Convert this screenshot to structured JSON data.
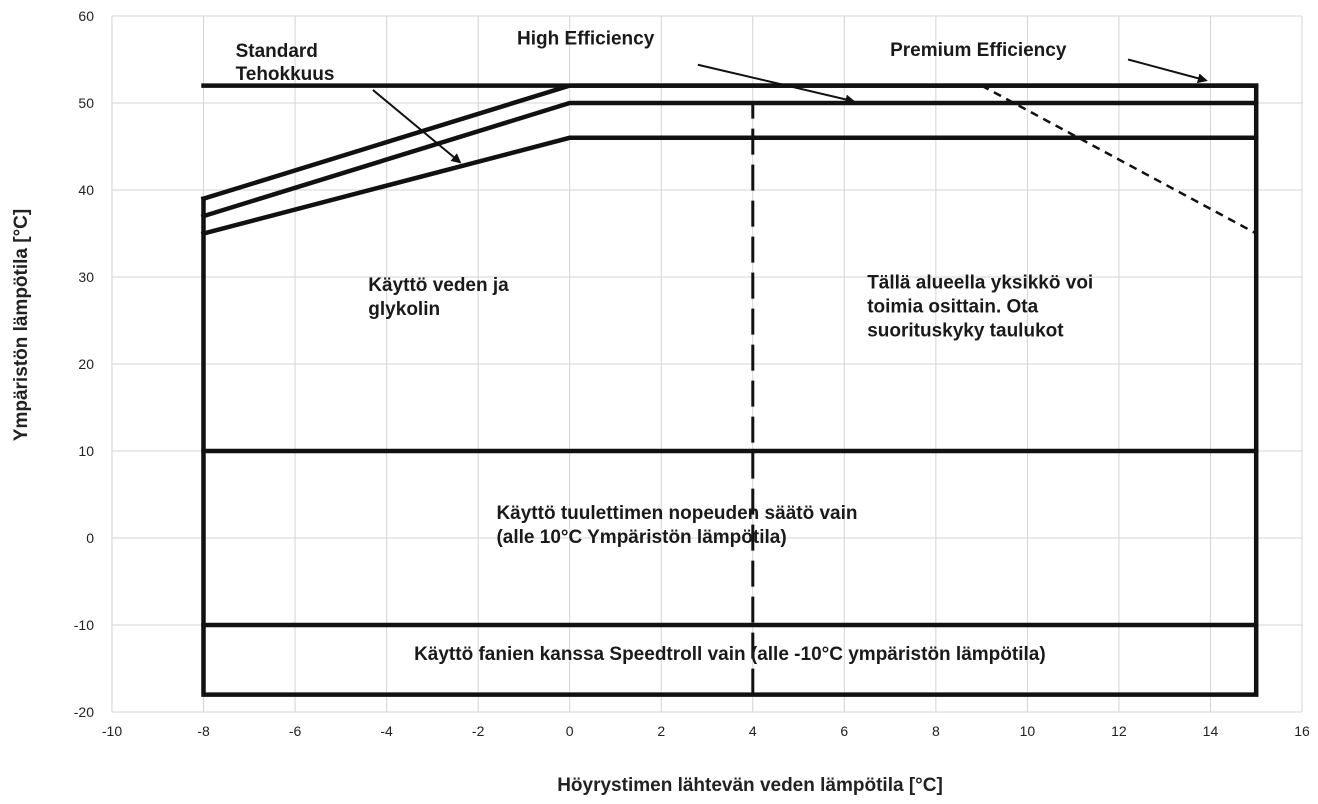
{
  "chart_data": {
    "type": "line",
    "title": "",
    "xlabel": "Höyrystimen lähtevän veden lämpötila [°C]",
    "ylabel": "Ympäristön lämpötila [°C]",
    "xlim": [
      -10,
      16
    ],
    "ylim": [
      -20,
      60
    ],
    "xticks": [
      -10,
      -8,
      -6,
      -4,
      -2,
      0,
      2,
      4,
      6,
      8,
      10,
      12,
      14,
      16
    ],
    "yticks": [
      -20,
      -10,
      0,
      10,
      20,
      30,
      40,
      50,
      60
    ],
    "grid": true,
    "series": [
      {
        "name": "Premium Efficiency",
        "x": [
          -8,
          0,
          15
        ],
        "y": [
          39,
          52,
          52
        ],
        "style": "solid"
      },
      {
        "name": "High Efficiency",
        "x": [
          -8,
          0,
          15
        ],
        "y": [
          37,
          50,
          50
        ],
        "style": "solid"
      },
      {
        "name": "Standard Tehokkuus",
        "x": [
          -8,
          0,
          15
        ],
        "y": [
          35,
          46,
          46
        ],
        "style": "solid"
      },
      {
        "name": "",
        "x": [
          9,
          15
        ],
        "y": [
          52,
          35
        ],
        "style": "dashed"
      },
      {
        "name": "",
        "x": [
          4,
          4
        ],
        "y": [
          -18,
          50
        ],
        "style": "long-dashed"
      },
      {
        "name": "",
        "x": [
          -8,
          -8,
          15,
          15,
          -8
        ],
        "y": [
          39,
          -18,
          -18,
          52,
          52
        ],
        "style": "solid"
      },
      {
        "name": "",
        "x": [
          -8,
          15
        ],
        "y": [
          10,
          10
        ],
        "style": "solid"
      },
      {
        "name": "",
        "x": [
          -8,
          15
        ],
        "y": [
          -10,
          -10
        ],
        "style": "solid"
      }
    ],
    "series_labels": [
      {
        "lines": [
          "Standard",
          "Tehokkuus"
        ],
        "x": -7.3,
        "y": 55.3,
        "arrow_from": [
          -4.3,
          51.5
        ],
        "arrow_to": [
          -2.4,
          43.2
        ]
      },
      {
        "lines": [
          "High Efficiency"
        ],
        "x": -1.15,
        "y": 56.7,
        "arrow_from": [
          2.8,
          54.4
        ],
        "arrow_to": [
          6.2,
          50.2
        ]
      },
      {
        "lines": [
          "Premium Efficiency"
        ],
        "x": 7.0,
        "y": 55.4,
        "arrow_from": [
          12.2,
          55.0
        ],
        "arrow_to": [
          13.9,
          52.6
        ]
      }
    ],
    "annotations": [
      {
        "lines": [
          "Käyttö veden ja",
          "glykolin"
        ],
        "x": -4.4,
        "y": 28.4
      },
      {
        "lines": [
          "Tällä alueella yksikkö voi",
          "toimia osittain. Ota",
          "suorituskyky taulukot"
        ],
        "x": 6.5,
        "y": 28.7
      },
      {
        "lines": [
          "Käyttö tuulettimen nopeuden säätö vain",
          "(alle 10°C Ympäristön lämpötila)"
        ],
        "x": -1.6,
        "y": 2.2
      },
      {
        "lines": [
          "Käyttö fanien kanssa Speedtroll vain (alle -10°C ympäristön lämpötila)"
        ],
        "x": -3.4,
        "y": -14.0
      }
    ]
  }
}
